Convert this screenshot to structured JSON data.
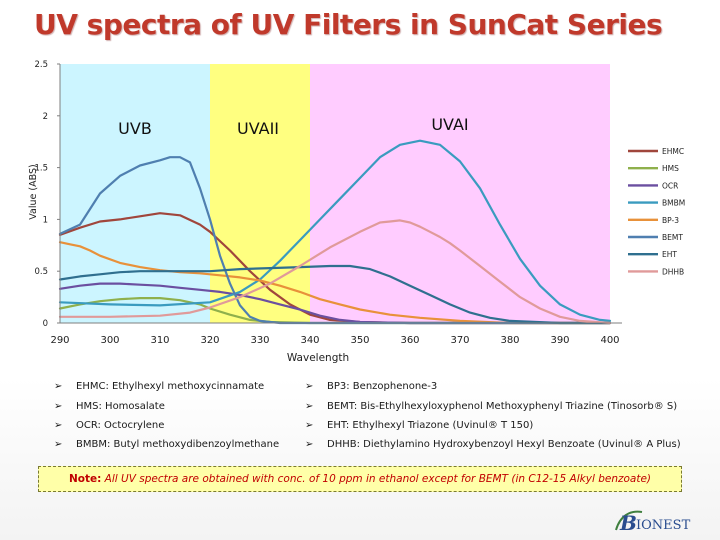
{
  "title": "UV spectra of UV Filters in SunCat Series",
  "chart_data": {
    "type": "line",
    "title": "",
    "xlabel": "Wavelength",
    "ylabel": "Value (ABS)",
    "xlim": [
      290,
      400
    ],
    "ylim": [
      0,
      2.5
    ],
    "xticks": [
      "290",
      "300",
      "310",
      "320",
      "330",
      "340",
      "350",
      "360",
      "370",
      "380",
      "390",
      "400"
    ],
    "yticks": [
      "0",
      "0.5",
      "1",
      "1.5",
      "2",
      "2.5"
    ],
    "legend_position": "right",
    "regions": [
      {
        "label": "UVB",
        "from": 290,
        "to": 320,
        "color": "#ccf5ff"
      },
      {
        "label": "UVAII",
        "from": 320,
        "to": 340,
        "color": "#ffff80"
      },
      {
        "label": "UVAI",
        "from": 340,
        "to": 400,
        "color": "#ffccff"
      }
    ],
    "series": [
      {
        "name": "EHMC",
        "color": "#a0463c",
        "points": [
          [
            290,
            0.85
          ],
          [
            294,
            0.92
          ],
          [
            298,
            0.98
          ],
          [
            302,
            1.0
          ],
          [
            306,
            1.03
          ],
          [
            310,
            1.06
          ],
          [
            314,
            1.04
          ],
          [
            318,
            0.95
          ],
          [
            320,
            0.88
          ],
          [
            324,
            0.7
          ],
          [
            328,
            0.5
          ],
          [
            332,
            0.32
          ],
          [
            336,
            0.18
          ],
          [
            340,
            0.08
          ],
          [
            344,
            0.03
          ],
          [
            350,
            0.01
          ],
          [
            360,
            0.0
          ],
          [
            400,
            0.0
          ]
        ]
      },
      {
        "name": "HMS",
        "color": "#8fb04c",
        "points": [
          [
            290,
            0.14
          ],
          [
            294,
            0.18
          ],
          [
            298,
            0.21
          ],
          [
            302,
            0.23
          ],
          [
            306,
            0.24
          ],
          [
            310,
            0.24
          ],
          [
            314,
            0.22
          ],
          [
            318,
            0.18
          ],
          [
            320,
            0.14
          ],
          [
            324,
            0.08
          ],
          [
            328,
            0.03
          ],
          [
            332,
            0.01
          ],
          [
            340,
            0.0
          ],
          [
            400,
            0.0
          ]
        ]
      },
      {
        "name": "OCR",
        "color": "#6b4fa0",
        "points": [
          [
            290,
            0.33
          ],
          [
            294,
            0.36
          ],
          [
            298,
            0.38
          ],
          [
            302,
            0.38
          ],
          [
            306,
            0.37
          ],
          [
            310,
            0.36
          ],
          [
            314,
            0.34
          ],
          [
            318,
            0.32
          ],
          [
            322,
            0.3
          ],
          [
            326,
            0.27
          ],
          [
            330,
            0.23
          ],
          [
            334,
            0.18
          ],
          [
            338,
            0.13
          ],
          [
            342,
            0.07
          ],
          [
            346,
            0.03
          ],
          [
            350,
            0.01
          ],
          [
            360,
            0.0
          ],
          [
            400,
            0.0
          ]
        ]
      },
      {
        "name": "BMBM",
        "color": "#3a9bbf",
        "points": [
          [
            290,
            0.2
          ],
          [
            300,
            0.18
          ],
          [
            310,
            0.17
          ],
          [
            320,
            0.2
          ],
          [
            326,
            0.3
          ],
          [
            330,
            0.42
          ],
          [
            334,
            0.6
          ],
          [
            338,
            0.8
          ],
          [
            342,
            1.0
          ],
          [
            346,
            1.2
          ],
          [
            350,
            1.4
          ],
          [
            354,
            1.6
          ],
          [
            358,
            1.72
          ],
          [
            362,
            1.76
          ],
          [
            366,
            1.72
          ],
          [
            370,
            1.56
          ],
          [
            374,
            1.3
          ],
          [
            378,
            0.95
          ],
          [
            382,
            0.62
          ],
          [
            386,
            0.36
          ],
          [
            390,
            0.18
          ],
          [
            394,
            0.08
          ],
          [
            398,
            0.03
          ],
          [
            400,
            0.02
          ]
        ]
      },
      {
        "name": "BP-3",
        "color": "#e8913a",
        "points": [
          [
            290,
            0.78
          ],
          [
            292,
            0.76
          ],
          [
            294,
            0.74
          ],
          [
            296,
            0.7
          ],
          [
            298,
            0.65
          ],
          [
            302,
            0.58
          ],
          [
            306,
            0.54
          ],
          [
            310,
            0.51
          ],
          [
            314,
            0.49
          ],
          [
            318,
            0.48
          ],
          [
            322,
            0.46
          ],
          [
            326,
            0.44
          ],
          [
            330,
            0.41
          ],
          [
            334,
            0.36
          ],
          [
            338,
            0.3
          ],
          [
            342,
            0.23
          ],
          [
            346,
            0.18
          ],
          [
            350,
            0.13
          ],
          [
            356,
            0.08
          ],
          [
            362,
            0.05
          ],
          [
            370,
            0.02
          ],
          [
            380,
            0.0
          ],
          [
            400,
            0.0
          ]
        ]
      },
      {
        "name": "BEMT",
        "color": "#4f7fb0",
        "points": [
          [
            290,
            0.86
          ],
          [
            294,
            0.95
          ],
          [
            298,
            1.25
          ],
          [
            302,
            1.42
          ],
          [
            306,
            1.52
          ],
          [
            310,
            1.57
          ],
          [
            312,
            1.6
          ],
          [
            314,
            1.6
          ],
          [
            316,
            1.55
          ],
          [
            318,
            1.3
          ],
          [
            320,
            1.0
          ],
          [
            322,
            0.65
          ],
          [
            324,
            0.38
          ],
          [
            326,
            0.17
          ],
          [
            328,
            0.06
          ],
          [
            330,
            0.02
          ],
          [
            334,
            0.0
          ],
          [
            400,
            0.0
          ]
        ]
      },
      {
        "name": "EHT",
        "color": "#2f6f8f",
        "points": [
          [
            290,
            0.42
          ],
          [
            294,
            0.45
          ],
          [
            298,
            0.47
          ],
          [
            302,
            0.49
          ],
          [
            306,
            0.5
          ],
          [
            310,
            0.5
          ],
          [
            314,
            0.5
          ],
          [
            320,
            0.5
          ],
          [
            326,
            0.52
          ],
          [
            332,
            0.53
          ],
          [
            338,
            0.54
          ],
          [
            344,
            0.55
          ],
          [
            348,
            0.55
          ],
          [
            352,
            0.52
          ],
          [
            356,
            0.45
          ],
          [
            360,
            0.36
          ],
          [
            364,
            0.27
          ],
          [
            368,
            0.18
          ],
          [
            372,
            0.1
          ],
          [
            376,
            0.05
          ],
          [
            380,
            0.02
          ],
          [
            390,
            0.0
          ],
          [
            400,
            0.0
          ]
        ]
      },
      {
        "name": "DHHB",
        "color": "#e09a9a",
        "points": [
          [
            290,
            0.06
          ],
          [
            300,
            0.06
          ],
          [
            310,
            0.07
          ],
          [
            316,
            0.1
          ],
          [
            320,
            0.15
          ],
          [
            326,
            0.25
          ],
          [
            332,
            0.38
          ],
          [
            338,
            0.55
          ],
          [
            344,
            0.73
          ],
          [
            350,
            0.88
          ],
          [
            354,
            0.97
          ],
          [
            356,
            0.98
          ],
          [
            358,
            0.99
          ],
          [
            360,
            0.97
          ],
          [
            362,
            0.93
          ],
          [
            364,
            0.88
          ],
          [
            366,
            0.83
          ],
          [
            368,
            0.77
          ],
          [
            370,
            0.7
          ],
          [
            374,
            0.55
          ],
          [
            378,
            0.4
          ],
          [
            382,
            0.25
          ],
          [
            386,
            0.14
          ],
          [
            390,
            0.06
          ],
          [
            394,
            0.02
          ],
          [
            400,
            0.0
          ]
        ]
      }
    ]
  },
  "definitions": {
    "left": [
      "EHMC: Ethylhexyl methoxycinnamate",
      "HMS: Homosalate",
      "OCR: Octocrylene",
      "BMBM: Butyl methoxydibenzoylmethane"
    ],
    "right": [
      "BP3: Benzophenone-3",
      "BEMT: Bis-Ethylhexyloxyphenol Methoxyphenyl Triazine (Tinosorb® S)",
      "EHT: Ethylhexyl Triazone (Uvinul® T 150)",
      "DHHB: Diethylamino Hydroxybenzoyl Hexyl Benzoate (Uvinul® A Plus)"
    ]
  },
  "note": {
    "label": "Note:",
    "text": "All UV spectra are obtained with conc. of 10 ppm in ethanol except for BEMT (in C12-15 Alkyl benzoate)"
  },
  "logo": {
    "initial": "B",
    "rest": "IONEST"
  }
}
